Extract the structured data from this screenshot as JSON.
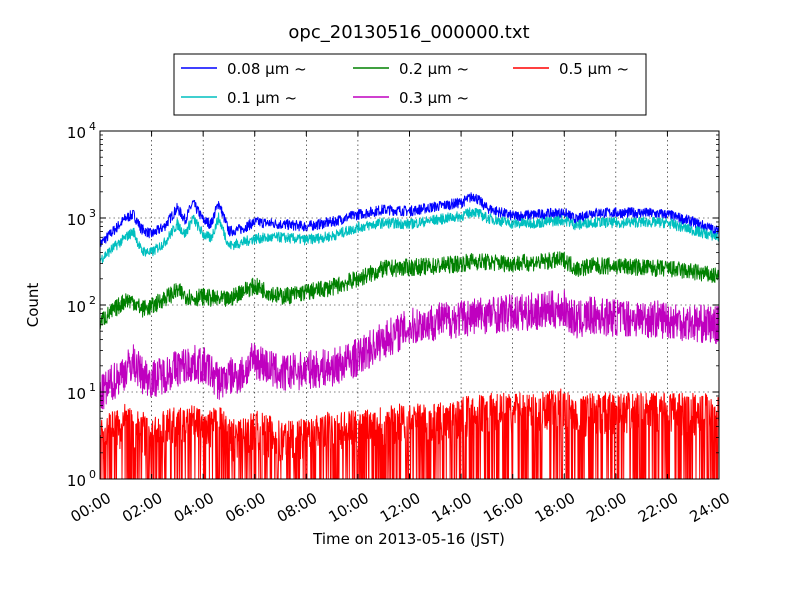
{
  "chart_data": {
    "type": "line",
    "title": "opc_20130516_000000.txt",
    "xlabel": "Time on 2013-05-16 (JST)",
    "ylabel": "Count",
    "x_unit": "hour of day",
    "xlim": [
      0,
      24
    ],
    "ylim": [
      1,
      10000
    ],
    "y_scale": "log",
    "grid": true,
    "legend_position": "top-center",
    "x_ticks": [
      "00:00",
      "02:00",
      "04:00",
      "06:00",
      "08:00",
      "10:00",
      "12:00",
      "14:00",
      "16:00",
      "18:00",
      "20:00",
      "22:00",
      "24:00"
    ],
    "y_ticks": [
      {
        "value": 1,
        "base": "10",
        "exp": "0"
      },
      {
        "value": 10,
        "base": "10",
        "exp": "1"
      },
      {
        "value": 100,
        "base": "10",
        "exp": "2"
      },
      {
        "value": 1000,
        "base": "10",
        "exp": "3"
      },
      {
        "value": 10000,
        "base": "10",
        "exp": "4"
      }
    ],
    "x": [
      0,
      0.5,
      1,
      1.3,
      1.6,
      2,
      2.5,
      3,
      3.3,
      3.6,
      4,
      4.3,
      4.6,
      5,
      5.5,
      6,
      7,
      8,
      9,
      10,
      11,
      12,
      13,
      14,
      14.5,
      15,
      16,
      17,
      18,
      18.5,
      19,
      20,
      21,
      22,
      23,
      24
    ],
    "series": [
      {
        "name": "0.08 μm ~",
        "color": "#0000ff",
        "values": [
          500,
          700,
          1000,
          1100,
          750,
          650,
          800,
          1300,
          950,
          1500,
          950,
          850,
          1500,
          700,
          750,
          900,
          850,
          800,
          900,
          1100,
          1250,
          1200,
          1350,
          1500,
          1800,
          1300,
          1050,
          1100,
          1150,
          950,
          1150,
          1150,
          1150,
          1100,
          900,
          700
        ]
      },
      {
        "name": "0.1 μm ~",
        "color": "#00bfbf",
        "values": [
          330,
          450,
          600,
          700,
          420,
          400,
          520,
          850,
          650,
          1000,
          650,
          580,
          1000,
          480,
          520,
          580,
          600,
          560,
          620,
          780,
          880,
          850,
          950,
          1050,
          1200,
          1000,
          860,
          880,
          950,
          820,
          900,
          880,
          900,
          880,
          720,
          600
        ]
      },
      {
        "name": "0.2 μm ~",
        "color": "#008000",
        "values": [
          65,
          85,
          115,
          110,
          90,
          95,
          120,
          145,
          130,
          120,
          125,
          120,
          115,
          115,
          145,
          165,
          125,
          140,
          160,
          200,
          260,
          270,
          280,
          300,
          320,
          310,
          300,
          310,
          330,
          260,
          280,
          280,
          270,
          260,
          240,
          210
        ]
      },
      {
        "name": "0.3 μm ~",
        "color": "#bf00bf",
        "values": [
          9,
          13,
          18,
          22,
          16,
          14,
          16,
          19,
          20,
          21,
          20,
          17,
          13,
          15,
          16,
          24,
          16,
          18,
          19,
          25,
          40,
          55,
          65,
          70,
          75,
          78,
          80,
          85,
          90,
          65,
          75,
          72,
          70,
          68,
          62,
          58
        ]
      },
      {
        "name": "0.5 μm ~",
        "color": "#ff0000",
        "values": [
          2,
          2.5,
          3,
          2.5,
          2.5,
          2,
          2.5,
          2.8,
          2.5,
          3,
          2.5,
          2.5,
          3,
          2,
          2,
          2.5,
          2,
          2,
          2.5,
          2.5,
          3,
          3,
          3,
          3.5,
          4,
          4,
          4,
          4,
          4.5,
          3.5,
          4,
          4,
          4,
          4,
          4,
          4
        ]
      }
    ]
  }
}
